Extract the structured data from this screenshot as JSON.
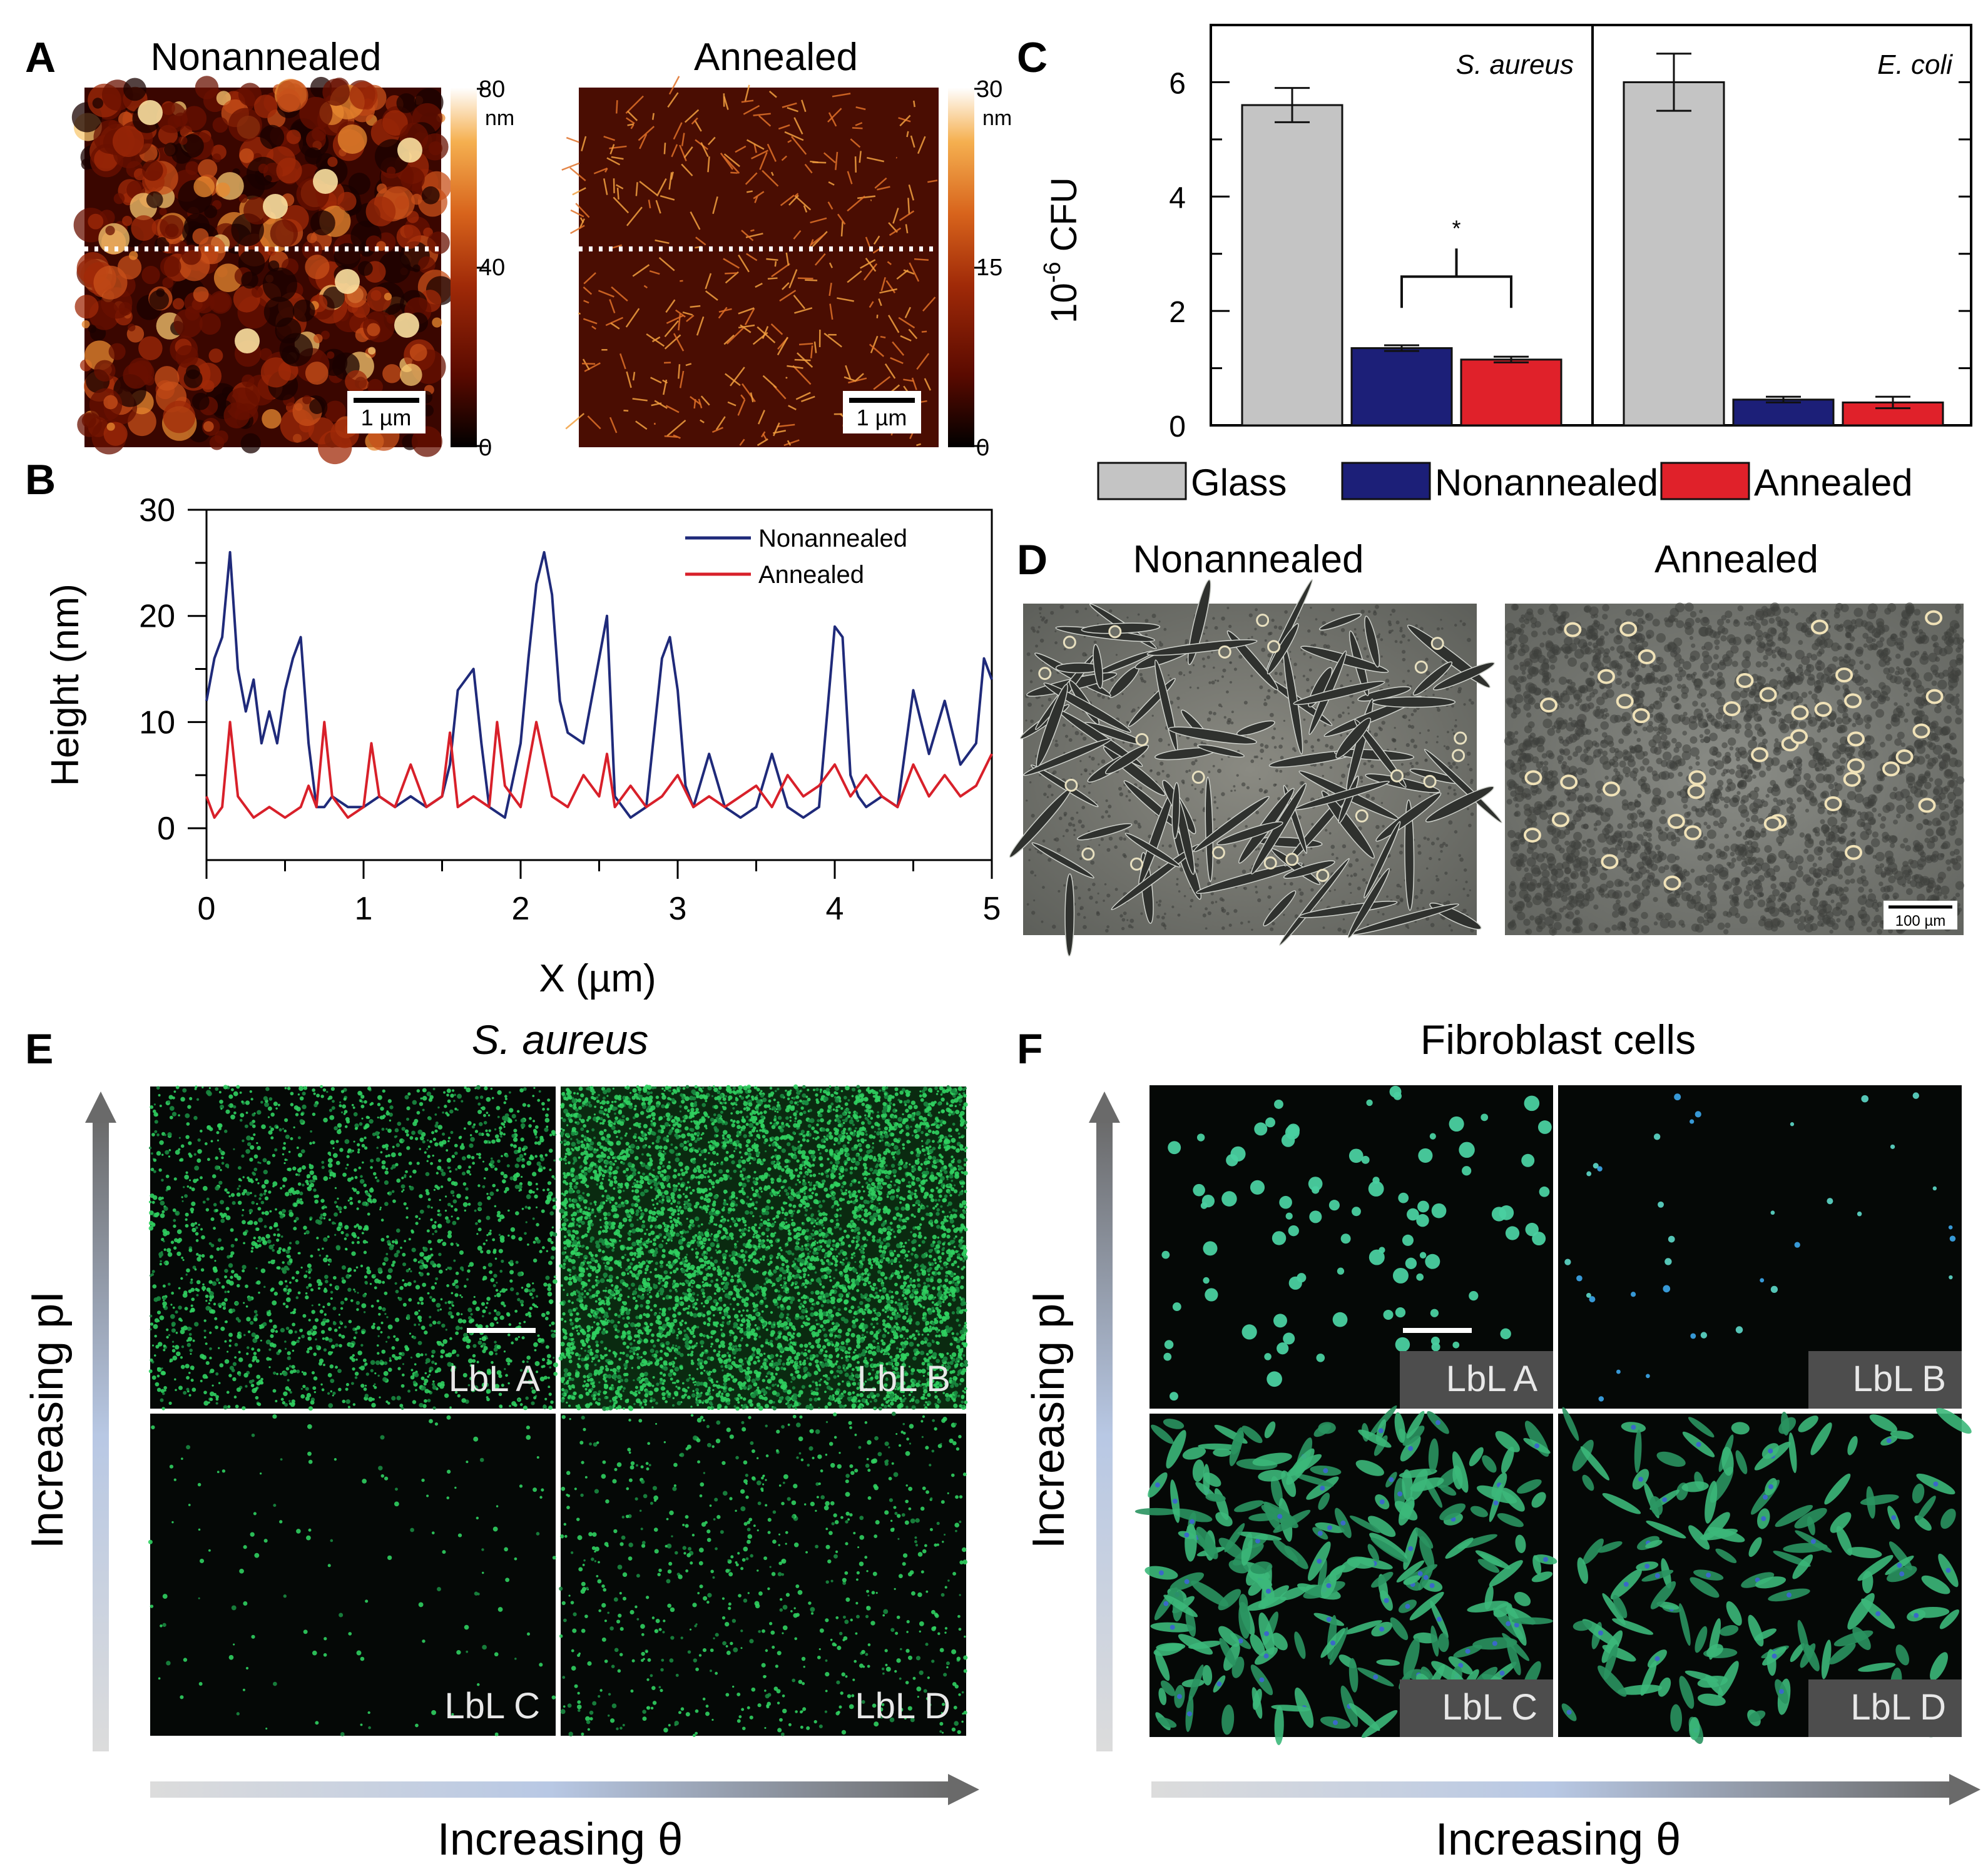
{
  "panel_letters": [
    "A",
    "B",
    "C",
    "D",
    "E",
    "F"
  ],
  "panel_a": {
    "left_title": "Nonannealed",
    "right_title": "Annealed",
    "left_colorbar": {
      "max": "80",
      "unit": "nm",
      "mid": "40",
      "min": "0"
    },
    "right_colorbar": {
      "max": "30",
      "unit": "nm",
      "mid": "15",
      "min": "0"
    },
    "scale_bar": "1 µm",
    "colormap": [
      "#000000",
      "#5a0a00",
      "#a02a08",
      "#d8641c",
      "#f5b050",
      "#ffffff"
    ]
  },
  "panel_b": {
    "chart_data": {
      "type": "line",
      "xlabel": "X (µm)",
      "ylabel": "Height (nm)",
      "xlim": [
        0,
        5
      ],
      "ylim": [
        -3,
        30
      ],
      "xticks": [
        "0",
        "1",
        "2",
        "3",
        "4",
        "5"
      ],
      "yticks": [
        "0",
        "10",
        "20",
        "30"
      ],
      "legend_position": "top-right",
      "series": [
        {
          "name": "Nonannealed",
          "color": "#1f2a7a",
          "x": [
            0,
            0.05,
            0.1,
            0.15,
            0.2,
            0.25,
            0.3,
            0.35,
            0.4,
            0.45,
            0.5,
            0.55,
            0.6,
            0.65,
            0.7,
            0.75,
            0.8,
            0.9,
            1.0,
            1.1,
            1.2,
            1.3,
            1.4,
            1.5,
            1.55,
            1.6,
            1.65,
            1.7,
            1.75,
            1.8,
            1.9,
            2.0,
            2.05,
            2.1,
            2.15,
            2.2,
            2.25,
            2.3,
            2.4,
            2.5,
            2.55,
            2.6,
            2.7,
            2.8,
            2.9,
            2.95,
            3.0,
            3.05,
            3.1,
            3.2,
            3.3,
            3.4,
            3.5,
            3.6,
            3.7,
            3.8,
            3.9,
            4.0,
            4.05,
            4.1,
            4.15,
            4.2,
            4.3,
            4.4,
            4.5,
            4.55,
            4.6,
            4.7,
            4.8,
            4.9,
            4.95,
            5.0
          ],
          "y": [
            12,
            16,
            18,
            26,
            15,
            11,
            14,
            8,
            11,
            8,
            13,
            16,
            18,
            8,
            2,
            2,
            3,
            2,
            2,
            3,
            2,
            3,
            2,
            3,
            6,
            13,
            14,
            15,
            8,
            2,
            1,
            8,
            16,
            23,
            26,
            22,
            12,
            9,
            8,
            16,
            20,
            3,
            1,
            2,
            16,
            18,
            13,
            4,
            2,
            7,
            2,
            1,
            2,
            7,
            2,
            1,
            2,
            19,
            18,
            5,
            3,
            2,
            3,
            2,
            13,
            10,
            7,
            12,
            6,
            8,
            16,
            14
          ]
        },
        {
          "name": "Annealed",
          "color": "#d8202a",
          "x": [
            0,
            0.05,
            0.1,
            0.15,
            0.2,
            0.25,
            0.3,
            0.4,
            0.5,
            0.6,
            0.65,
            0.7,
            0.75,
            0.8,
            0.9,
            1.0,
            1.05,
            1.1,
            1.2,
            1.3,
            1.4,
            1.5,
            1.55,
            1.6,
            1.7,
            1.8,
            1.85,
            1.9,
            2.0,
            2.1,
            2.2,
            2.3,
            2.4,
            2.5,
            2.55,
            2.6,
            2.7,
            2.8,
            2.9,
            3.0,
            3.1,
            3.2,
            3.3,
            3.4,
            3.5,
            3.6,
            3.7,
            3.8,
            3.9,
            4.0,
            4.1,
            4.2,
            4.3,
            4.4,
            4.5,
            4.6,
            4.7,
            4.8,
            4.9,
            5.0
          ],
          "y": [
            3,
            1,
            2,
            10,
            3,
            2,
            1,
            2,
            1,
            2,
            4,
            2,
            10,
            3,
            1,
            2,
            8,
            3,
            2,
            6,
            2,
            3,
            9,
            2,
            3,
            2,
            10,
            4,
            2,
            10,
            3,
            2,
            5,
            3,
            7,
            2,
            4,
            2,
            3,
            5,
            2,
            3,
            2,
            3,
            4,
            2,
            5,
            3,
            4,
            6,
            3,
            5,
            3,
            2,
            6,
            3,
            5,
            3,
            4,
            7
          ]
        }
      ]
    }
  },
  "panel_c": {
    "chart_data": {
      "type": "bar",
      "ylabel_prefix": "10",
      "ylabel_exp": "-6",
      "ylabel_suffix": " CFU",
      "ylim": [
        0,
        7
      ],
      "yticks": [
        "0",
        "2",
        "4",
        "6"
      ],
      "subplots": [
        {
          "title": "S. aureus",
          "series": [
            {
              "name": "Glass",
              "value": 5.6,
              "error": 0.3
            },
            {
              "name": "Nonannealed",
              "value": 1.35,
              "error": 0.05
            },
            {
              "name": "Annealed",
              "value": 1.15,
              "error": 0.05
            }
          ],
          "significance": "*"
        },
        {
          "title": "E. coli",
          "series": [
            {
              "name": "Glass",
              "value": 6.0,
              "error": 0.5
            },
            {
              "name": "Nonannealed",
              "value": 0.45,
              "error": 0.05
            },
            {
              "name": "Annealed",
              "value": 0.4,
              "error": 0.1
            }
          ]
        }
      ],
      "legend": [
        {
          "name": "Glass",
          "color": "#c4c4c4"
        },
        {
          "name": "Nonannealed",
          "color": "#1c1f78"
        },
        {
          "name": "Annealed",
          "color": "#e0212a"
        }
      ],
      "legend_position": "bottom"
    }
  },
  "panel_d": {
    "left_title": "Nonannealed",
    "right_title": "Annealed",
    "scale_bar": "100 µm"
  },
  "panel_e": {
    "title": "S. aureus",
    "y_arrow_label": "Increasing pI",
    "x_arrow_label": "Increasing θ",
    "tiles": [
      "LbL A",
      "LbL B",
      "LbL C",
      "LbL D"
    ],
    "density": [
      0.35,
      1.0,
      0.02,
      0.12
    ]
  },
  "panel_f": {
    "title": "Fibroblast cells",
    "y_arrow_label": "Increasing pI",
    "x_arrow_label": "Increasing θ",
    "tiles": [
      "LbL A",
      "LbL B",
      "LbL C",
      "LbL D"
    ],
    "density": [
      0.35,
      0.15,
      1.0,
      0.6
    ]
  }
}
